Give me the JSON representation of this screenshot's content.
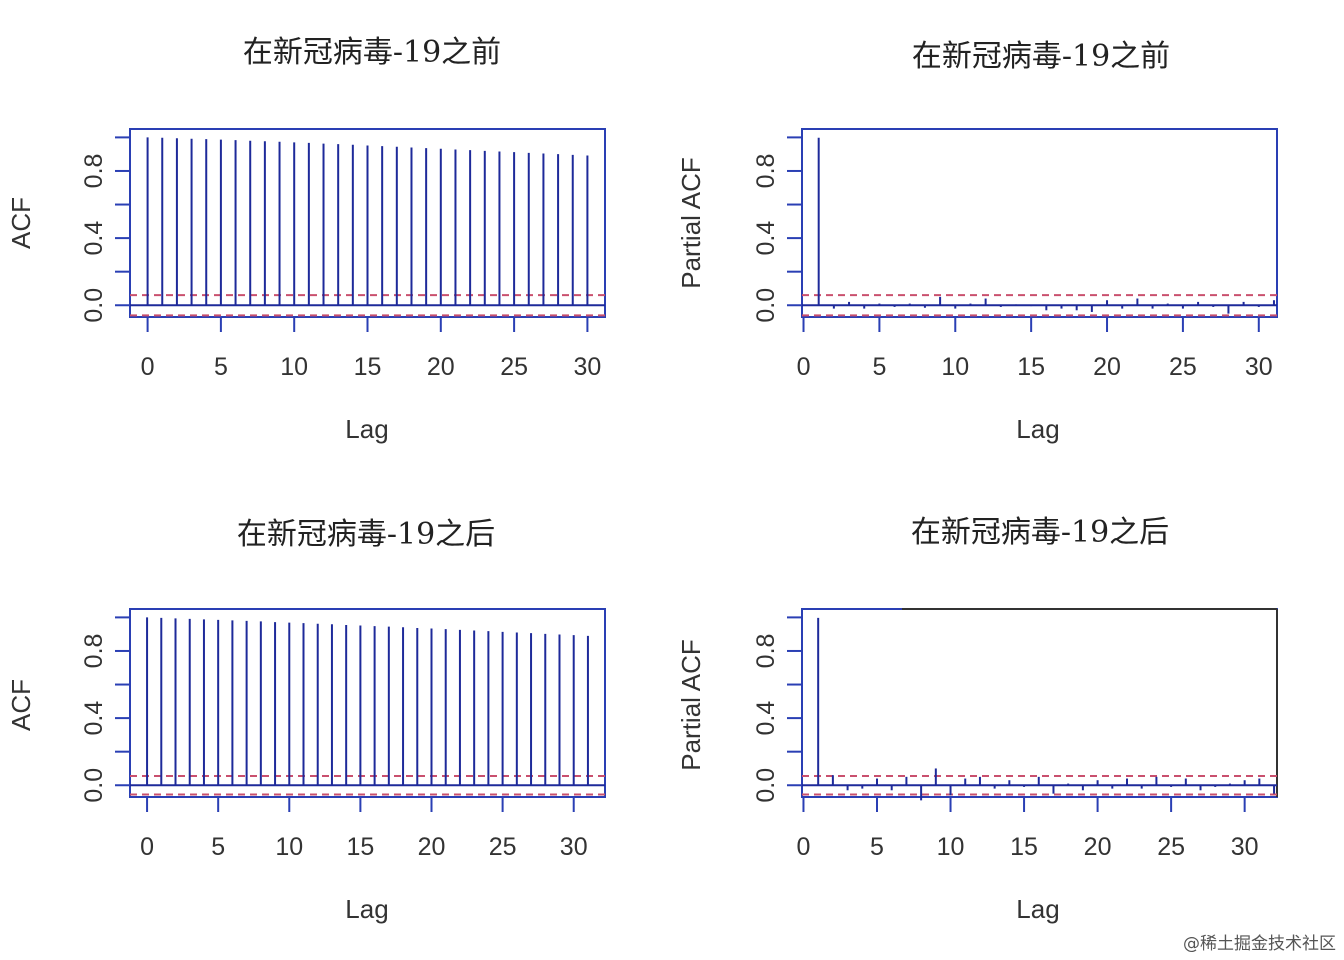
{
  "colors": {
    "axis": "#2a3fb4",
    "bar": "#1e2a9a",
    "ci": "#c9506e",
    "text": "#333333",
    "frame_dark": "#333333"
  },
  "watermark": "@稀土掘金技术社区",
  "chart_data": [
    {
      "type": "bar",
      "subtype": "acf",
      "title": "在新冠病毒-19之前",
      "xlabel": "Lag",
      "ylabel": "ACF",
      "xlim": [
        -1.2,
        31.2
      ],
      "ylim": [
        -0.07,
        1.05
      ],
      "xticks": [
        0,
        5,
        10,
        15,
        20,
        25,
        30
      ],
      "xtick_labels": [
        "0",
        "5",
        "10",
        "15",
        "20",
        "25",
        "30"
      ],
      "yticks": [
        0,
        0.2,
        0.4,
        0.6,
        0.8,
        1.0
      ],
      "ytick_labels": [
        "0.0",
        "",
        "0.4",
        "",
        "0.8",
        ""
      ],
      "ci": [
        0.06,
        -0.06
      ],
      "lags": [
        0,
        1,
        2,
        3,
        4,
        5,
        6,
        7,
        8,
        9,
        10,
        11,
        12,
        13,
        14,
        15,
        16,
        17,
        18,
        19,
        20,
        21,
        22,
        23,
        24,
        25,
        26,
        27,
        28,
        29,
        30
      ],
      "values": [
        1.0,
        0.998,
        0.995,
        0.992,
        0.99,
        0.987,
        0.984,
        0.98,
        0.977,
        0.974,
        0.97,
        0.967,
        0.963,
        0.96,
        0.956,
        0.952,
        0.948,
        0.944,
        0.94,
        0.936,
        0.932,
        0.928,
        0.924,
        0.92,
        0.916,
        0.912,
        0.908,
        0.904,
        0.9,
        0.896,
        0.892
      ]
    },
    {
      "type": "bar",
      "subtype": "pacf",
      "title": "在新冠病毒-19之前",
      "xlabel": "Lag",
      "ylabel": "Partial ACF",
      "xlim": [
        -0.1,
        31.2
      ],
      "ylim": [
        -0.07,
        1.05
      ],
      "xticks": [
        0,
        5,
        10,
        15,
        20,
        25,
        30
      ],
      "xtick_labels": [
        "0",
        "5",
        "10",
        "15",
        "20",
        "25",
        "30"
      ],
      "yticks": [
        0,
        0.2,
        0.4,
        0.6,
        0.8,
        1.0
      ],
      "ytick_labels": [
        "0.0",
        "",
        "0.4",
        "",
        "0.8",
        ""
      ],
      "ci": [
        0.06,
        -0.06
      ],
      "lags": [
        1,
        2,
        3,
        4,
        5,
        6,
        7,
        8,
        9,
        10,
        11,
        12,
        13,
        14,
        15,
        16,
        17,
        18,
        19,
        20,
        21,
        22,
        23,
        24,
        25,
        26,
        27,
        28,
        29,
        30,
        31
      ],
      "values": [
        0.998,
        -0.02,
        0.02,
        -0.02,
        0.01,
        -0.01,
        0.01,
        -0.015,
        0.05,
        -0.02,
        0.01,
        0.04,
        -0.01,
        0.005,
        -0.005,
        -0.03,
        -0.02,
        -0.03,
        -0.04,
        0.03,
        -0.02,
        0.04,
        -0.02,
        0.01,
        -0.02,
        0.02,
        -0.01,
        -0.05,
        0.02,
        -0.01,
        0.03
      ]
    },
    {
      "type": "bar",
      "subtype": "acf",
      "title": "在新冠病毒-19之后",
      "xlabel": "Lag",
      "ylabel": "ACF",
      "xlim": [
        -1.2,
        32.2
      ],
      "ylim": [
        -0.07,
        1.05
      ],
      "xticks": [
        0,
        5,
        10,
        15,
        20,
        25,
        30
      ],
      "xtick_labels": [
        "0",
        "5",
        "10",
        "15",
        "20",
        "25",
        "30"
      ],
      "yticks": [
        0,
        0.2,
        0.4,
        0.6,
        0.8,
        1.0
      ],
      "ytick_labels": [
        "0.0",
        "",
        "0.4",
        "",
        "0.8",
        ""
      ],
      "ci": [
        0.055,
        -0.055
      ],
      "lags": [
        0,
        1,
        2,
        3,
        4,
        5,
        6,
        7,
        8,
        9,
        10,
        11,
        12,
        13,
        14,
        15,
        16,
        17,
        18,
        19,
        20,
        21,
        22,
        23,
        24,
        25,
        26,
        27,
        28,
        29,
        30,
        31
      ],
      "values": [
        1.0,
        0.997,
        0.994,
        0.991,
        0.988,
        0.985,
        0.982,
        0.979,
        0.976,
        0.972,
        0.969,
        0.966,
        0.962,
        0.959,
        0.955,
        0.952,
        0.948,
        0.945,
        0.941,
        0.937,
        0.934,
        0.93,
        0.926,
        0.922,
        0.918,
        0.914,
        0.91,
        0.906,
        0.902,
        0.898,
        0.894,
        0.89
      ]
    },
    {
      "type": "bar",
      "subtype": "pacf",
      "title": "在新冠病毒-19之后",
      "xlabel": "Lag",
      "ylabel": "Partial ACF",
      "xlim": [
        -0.1,
        32.2
      ],
      "ylim": [
        -0.07,
        1.05
      ],
      "xticks": [
        0,
        5,
        10,
        15,
        20,
        25,
        30
      ],
      "xtick_labels": [
        "0",
        "5",
        "10",
        "15",
        "20",
        "25",
        "30"
      ],
      "yticks": [
        0,
        0.2,
        0.4,
        0.6,
        0.8,
        1.0
      ],
      "ytick_labels": [
        "0.0",
        "",
        "0.4",
        "",
        "0.8",
        ""
      ],
      "ci": [
        0.055,
        -0.055
      ],
      "lags": [
        1,
        2,
        3,
        4,
        5,
        6,
        7,
        8,
        9,
        10,
        11,
        12,
        13,
        14,
        15,
        16,
        17,
        18,
        19,
        20,
        21,
        22,
        23,
        24,
        25,
        26,
        27,
        28,
        29,
        30,
        31,
        32
      ],
      "values": [
        0.997,
        0.06,
        -0.03,
        -0.02,
        0.04,
        -0.03,
        0.05,
        -0.09,
        0.1,
        -0.06,
        0.04,
        0.05,
        -0.02,
        0.03,
        -0.01,
        0.05,
        -0.05,
        0.01,
        -0.03,
        0.03,
        -0.02,
        0.04,
        -0.02,
        0.05,
        -0.01,
        0.04,
        -0.03,
        -0.01,
        0.01,
        0.03,
        0.04,
        -0.05
      ]
    }
  ]
}
